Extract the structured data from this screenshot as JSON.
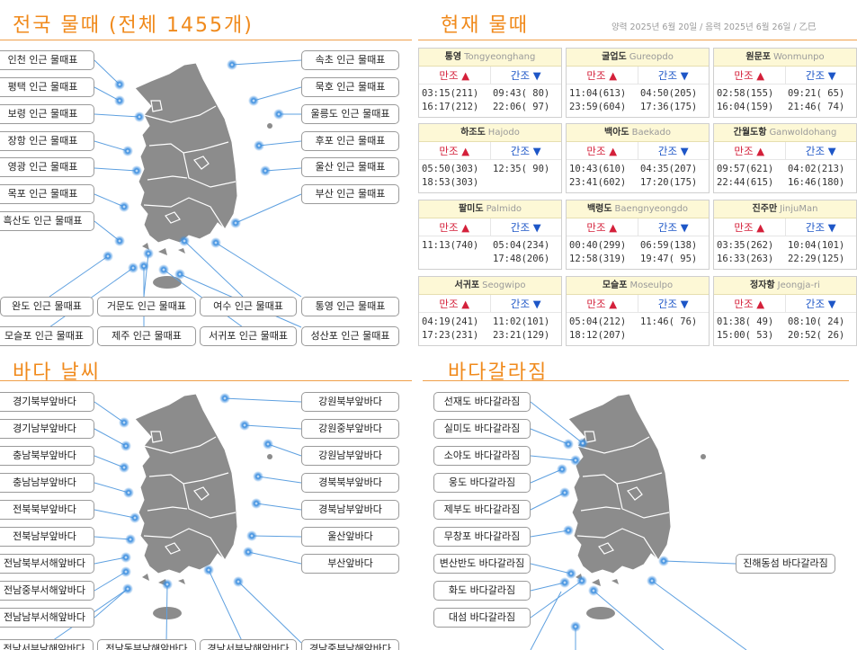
{
  "sections": {
    "tide_title": "전국 물때 (전체 1455개)",
    "current_title": "현재 물때",
    "weather_title": "바다 날씨",
    "sea_split_title": "바다갈라짐",
    "date_info": "양력 2025년 6월 20일 / 음력 2025년 6월 26일 / 乙巳"
  },
  "colors": {
    "accent": "#f08a1c",
    "map": "#8c8c8c",
    "marker": "#3d8fe0",
    "high": "#d4203a",
    "low": "#1d56c7"
  },
  "tide_labels": [
    "인천 인근 물때표",
    "평택 인근 물때표",
    "보령 인근 물때표",
    "장항 인근 물때표",
    "영광 인근 물때표",
    "목포 인근 물때표",
    "흑산도 인근 물때표",
    "속초 인근 물때표",
    "묵호 인근 물때표",
    "울릉도 인근 물때표",
    "후포 인근 물때표",
    "울산 인근 물때표",
    "부산 인근 물때표",
    "완도 인근 물때표",
    "거문도 인근 물때표",
    "여수 인근 물때표",
    "통영 인근 물때표",
    "모슬포 인근 물때표",
    "제주 인근 물때표",
    "서귀포 인근 물때표",
    "성산포 인근 물때표"
  ],
  "weather_labels": [
    "경기북부앞바다",
    "경기남부앞바다",
    "충남북부앞바다",
    "충남남부앞바다",
    "전북북부앞바다",
    "전북남부앞바다",
    "전남북부서해앞바다",
    "전남중부서해앞바다",
    "전남남부서해앞바다",
    "강원북부앞바다",
    "강원중부앞바다",
    "강원남부앞바다",
    "경북북부앞바다",
    "경북남부앞바다",
    "울산앞바다",
    "부산앞바다",
    "전남서부남해앞바다",
    "전남동부남해앞바다",
    "경남서부남해앞바다",
    "경남중부남해앞바다"
  ],
  "sea_split_labels": [
    "선재도 바다갈라짐",
    "실미도 바다갈라짐",
    "소야도 바다갈라짐",
    "웅도 바다갈라짐",
    "제부도 바다갈라짐",
    "무창포 바다갈라짐",
    "변산반도 바다갈라짐",
    "화도 바다갈라짐",
    "대섬 바다갈라짐",
    "진해동섬 바다갈라짐"
  ],
  "tide_header": {
    "high": "만조 ▲",
    "low": "간조 ▼"
  },
  "stations": [
    {
      "ko": "통영",
      "en": "Tongyeonghang",
      "high": [
        "03:15(211)",
        "16:17(212)"
      ],
      "low": [
        "09:43( 80)",
        "22:06( 97)"
      ]
    },
    {
      "ko": "굴업도",
      "en": "Gureopdo",
      "high": [
        "11:04(613)",
        "23:59(604)"
      ],
      "low": [
        "04:50(205)",
        "17:36(175)"
      ]
    },
    {
      "ko": "원문포",
      "en": "Wonmunpo",
      "high": [
        "02:58(155)",
        "16:04(159)"
      ],
      "low": [
        "09:21( 65)",
        "21:46( 74)"
      ]
    },
    {
      "ko": "하조도",
      "en": "Hajodo",
      "high": [
        "05:50(303)",
        "18:53(303)"
      ],
      "low": [
        "12:35( 90)",
        ""
      ]
    },
    {
      "ko": "백아도",
      "en": "Baekado",
      "high": [
        "10:43(610)",
        "23:41(602)"
      ],
      "low": [
        "04:35(207)",
        "17:20(175)"
      ]
    },
    {
      "ko": "간월도항",
      "en": "Ganwoldohang",
      "high": [
        "09:57(621)",
        "22:44(615)"
      ],
      "low": [
        "04:02(213)",
        "16:46(180)"
      ]
    },
    {
      "ko": "팔미도",
      "en": "Palmido",
      "high": [
        "11:13(740)",
        ""
      ],
      "low": [
        "05:04(234)",
        "17:48(206)"
      ]
    },
    {
      "ko": "백령도",
      "en": "Baengnyeongdo",
      "high": [
        "00:40(299)",
        "12:58(319)"
      ],
      "low": [
        "06:59(138)",
        "19:47( 95)"
      ]
    },
    {
      "ko": "진주만",
      "en": "JinjuMan",
      "high": [
        "03:35(262)",
        "16:33(263)"
      ],
      "low": [
        "10:04(101)",
        "22:29(125)"
      ]
    },
    {
      "ko": "서귀포",
      "en": "Seogwipo",
      "high": [
        "04:19(241)",
        "17:23(231)"
      ],
      "low": [
        "11:02(101)",
        "23:21(129)"
      ]
    },
    {
      "ko": "모슬포",
      "en": "Moseulpo",
      "high": [
        "05:04(212)",
        "18:12(207)"
      ],
      "low": [
        "11:46( 76)",
        ""
      ]
    },
    {
      "ko": "정자항",
      "en": "Jeongja-ri",
      "high": [
        "01:38( 49)",
        "15:00( 53)"
      ],
      "low": [
        "08:10( 24)",
        "20:52( 26)"
      ]
    }
  ]
}
